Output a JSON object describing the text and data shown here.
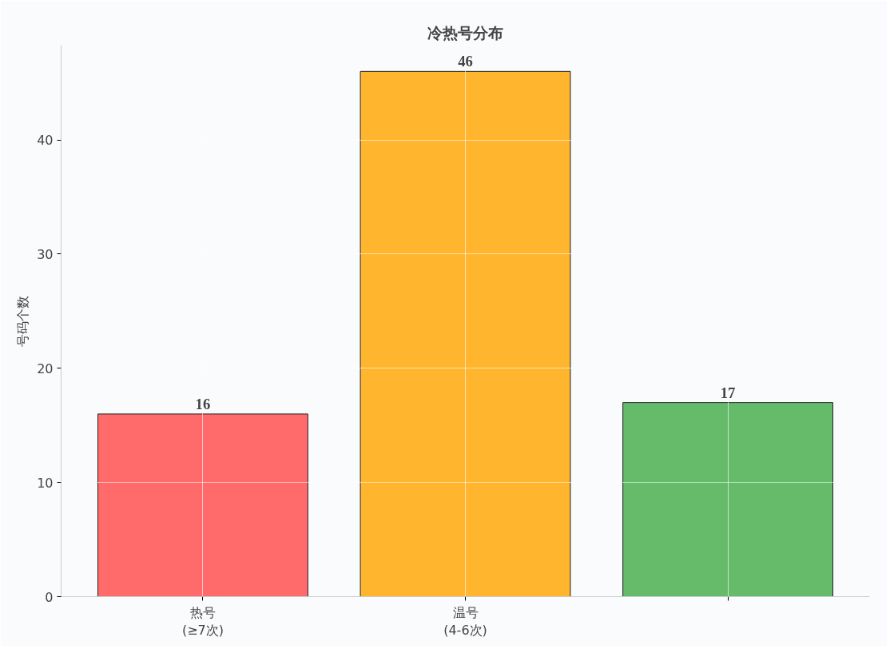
{
  "chart_data": {
    "type": "bar",
    "title": "冷热号分布",
    "ylabel": "号码个数",
    "categories": [
      "热号\n(≥7次)",
      "温号\n(4-6次)",
      null
    ],
    "values": [
      16,
      46,
      17
    ],
    "colors": [
      "#ff6b6b",
      "#ffb52e",
      "#66bb6a"
    ],
    "data_labels": true,
    "ylim": [
      0,
      48.3
    ],
    "yticks": [
      0,
      10,
      20,
      30,
      40
    ],
    "grid": true
  }
}
